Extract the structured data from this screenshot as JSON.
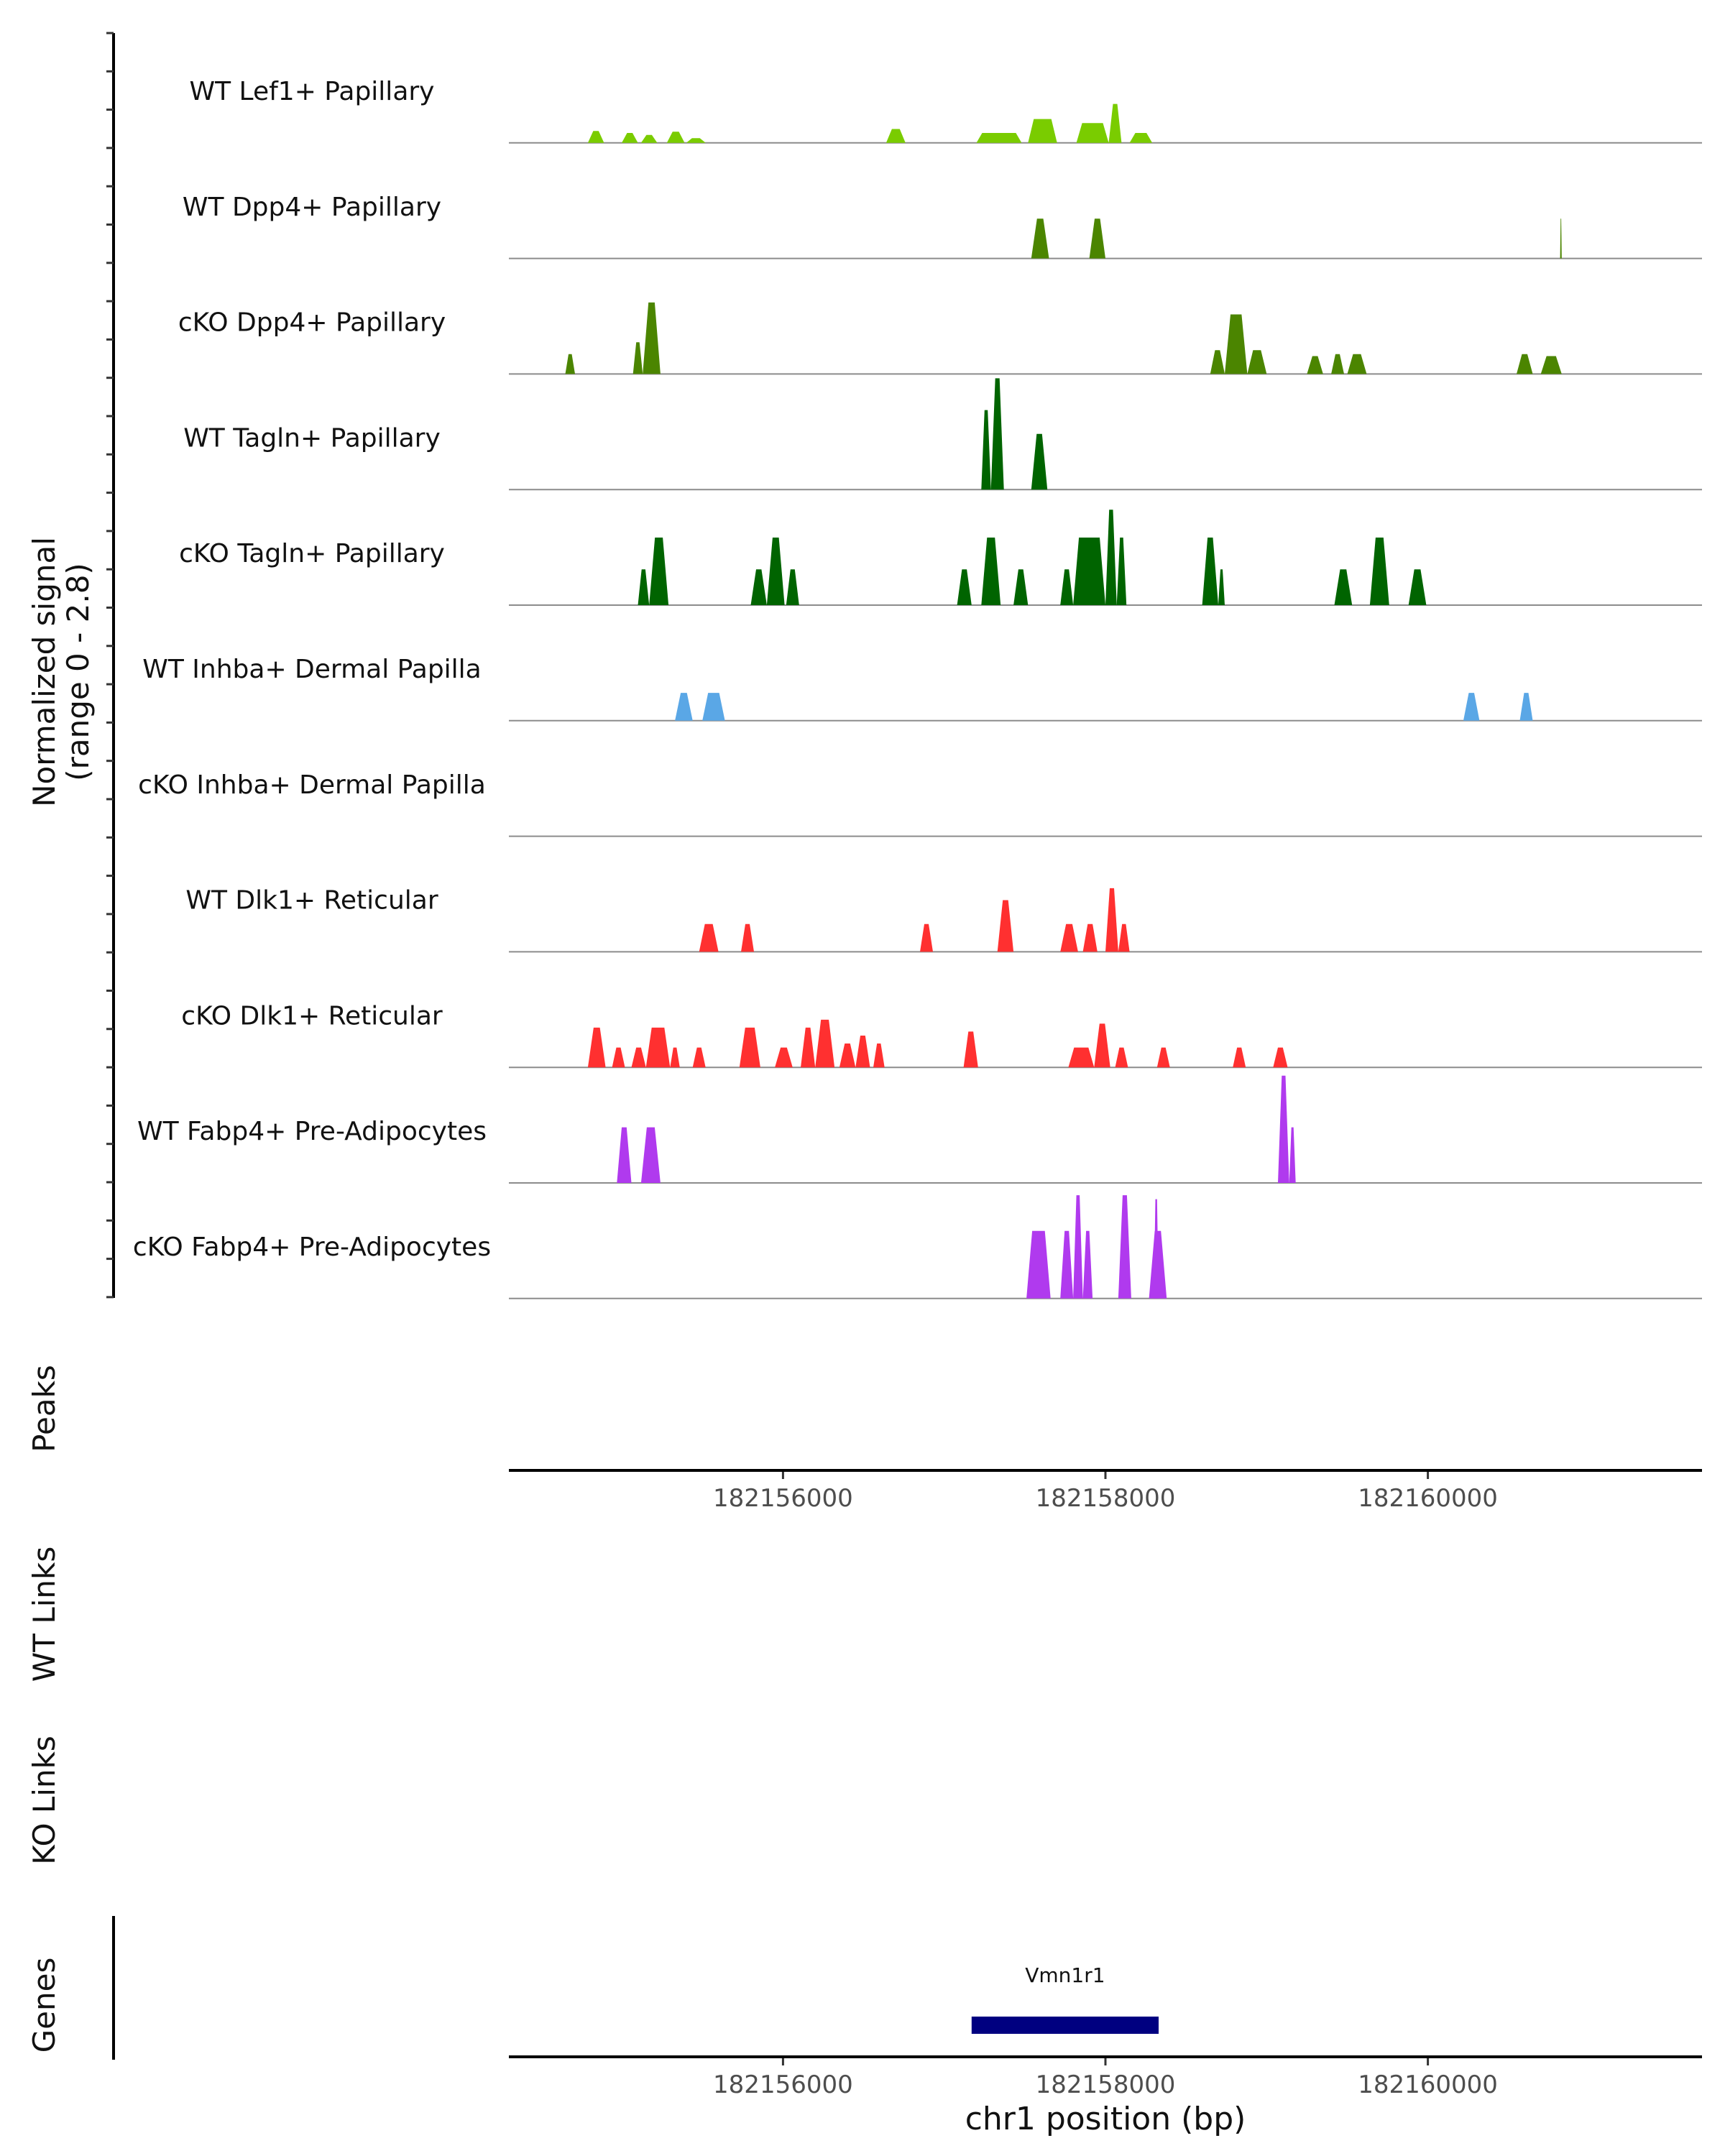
{
  "chart_data": {
    "type": "area",
    "title": "",
    "chromosome": "chr1",
    "xlim": [
      182154300,
      182161700
    ],
    "ylim": [
      0,
      2.8
    ],
    "ylabel_line1": "Normalized signal",
    "ylabel_line2": "(range 0 - 2.8)",
    "xlabel": "chr1 position (bp)",
    "x_ticks": [
      "182156000",
      "182158000",
      "182160000"
    ],
    "x_tick_values": [
      182156000,
      182158000,
      182160000
    ],
    "section_labels": {
      "peaks": "Peaks",
      "wt_links": "WT Links",
      "ko_links": "KO Links",
      "genes": "Genes"
    },
    "series": [
      {
        "name": "WT Lef1+ Papillary",
        "color": "#7ACC00",
        "peaks": [
          [
            182154790,
            182154890,
            0.3
          ],
          [
            182155000,
            182155100,
            0.25
          ],
          [
            182155120,
            182155220,
            0.2
          ],
          [
            182155280,
            182155390,
            0.28
          ],
          [
            182155400,
            182155520,
            0.12
          ],
          [
            182156640,
            182156760,
            0.35
          ],
          [
            182157200,
            182157480,
            0.25
          ],
          [
            182157520,
            182157700,
            0.6
          ],
          [
            182157820,
            182158020,
            0.5
          ],
          [
            182158020,
            182158100,
            0.98
          ],
          [
            182158150,
            182158290,
            0.25
          ]
        ]
      },
      {
        "name": "WT Dpp4+ Papillary",
        "color": "#4B8500",
        "peaks": [
          [
            182157540,
            182157650,
            1.0
          ],
          [
            182157900,
            182158000,
            1.0
          ],
          [
            182160820,
            182160830,
            1.0
          ]
        ]
      },
      {
        "name": "cKO Dpp4+ Papillary",
        "color": "#4B8500",
        "peaks": [
          [
            182154650,
            182154710,
            0.5
          ],
          [
            182155070,
            182155130,
            0.8
          ],
          [
            182155130,
            182155240,
            1.8
          ],
          [
            182158650,
            182158740,
            0.6
          ],
          [
            182158740,
            182158880,
            1.5
          ],
          [
            182158880,
            182159000,
            0.6
          ],
          [
            182159250,
            182159350,
            0.45
          ],
          [
            182159400,
            182159480,
            0.5
          ],
          [
            182159500,
            182159620,
            0.5
          ],
          [
            182160550,
            182160650,
            0.5
          ],
          [
            182160700,
            182160830,
            0.45
          ]
        ]
      },
      {
        "name": "WT Tagln+ Papillary",
        "color": "#006400",
        "peaks": [
          [
            182157230,
            182157290,
            2.0
          ],
          [
            182157290,
            182157370,
            2.8
          ],
          [
            182157540,
            182157640,
            1.4
          ]
        ]
      },
      {
        "name": "cKO Tagln+ Papillary",
        "color": "#006400",
        "peaks": [
          [
            182155100,
            182155170,
            0.9
          ],
          [
            182155170,
            182155290,
            1.7
          ],
          [
            182155800,
            182155900,
            0.9
          ],
          [
            182155900,
            182156010,
            1.7
          ],
          [
            182156020,
            182156100,
            0.9
          ],
          [
            182157080,
            182157170,
            0.9
          ],
          [
            182157230,
            182157350,
            1.7
          ],
          [
            182157430,
            182157520,
            0.9
          ],
          [
            182157720,
            182157800,
            0.9
          ],
          [
            182157800,
            182158000,
            1.7
          ],
          [
            182158000,
            182158070,
            2.4
          ],
          [
            182158070,
            182158130,
            1.7
          ],
          [
            182158600,
            182158700,
            1.7
          ],
          [
            182158700,
            182158740,
            0.9
          ],
          [
            182159420,
            182159530,
            0.9
          ],
          [
            182159640,
            182159760,
            1.7
          ],
          [
            182159880,
            182159990,
            0.9
          ]
        ]
      },
      {
        "name": "WT Inhba+ Dermal Papilla",
        "color": "#5AA7E6",
        "peaks": [
          [
            182155330,
            182155440,
            0.7
          ],
          [
            182155500,
            182155640,
            0.7
          ],
          [
            182160220,
            182160320,
            0.7
          ],
          [
            182160570,
            182160650,
            0.7
          ]
        ]
      },
      {
        "name": "cKO Inhba+ Dermal Papilla",
        "color": "#5AA7E6",
        "peaks": []
      },
      {
        "name": "WT Dlk1+ Reticular",
        "color": "#FF3030",
        "peaks": [
          [
            182155480,
            182155600,
            0.7
          ],
          [
            182155740,
            182155820,
            0.7
          ],
          [
            182156850,
            182156930,
            0.7
          ],
          [
            182157330,
            182157430,
            1.3
          ],
          [
            182157720,
            182157830,
            0.7
          ],
          [
            182157860,
            182157950,
            0.7
          ],
          [
            182158000,
            182158080,
            1.6
          ],
          [
            182158080,
            182158150,
            0.7
          ]
        ]
      },
      {
        "name": "cKO Dlk1+ Reticular",
        "color": "#FF3030",
        "peaks": [
          [
            182154790,
            182154900,
            1.0
          ],
          [
            182154940,
            182155020,
            0.5
          ],
          [
            182155060,
            182155150,
            0.5
          ],
          [
            182155150,
            182155300,
            1.0
          ],
          [
            182155300,
            182155360,
            0.5
          ],
          [
            182155440,
            182155520,
            0.5
          ],
          [
            182155730,
            182155860,
            1.0
          ],
          [
            182155950,
            182156060,
            0.5
          ],
          [
            182156110,
            182156200,
            1.0
          ],
          [
            182156200,
            182156320,
            1.2
          ],
          [
            182156350,
            182156450,
            0.6
          ],
          [
            182156450,
            182156540,
            0.8
          ],
          [
            182156560,
            182156630,
            0.6
          ],
          [
            182157120,
            182157210,
            0.9
          ],
          [
            182157770,
            182157930,
            0.5
          ],
          [
            182157930,
            182158030,
            1.1
          ],
          [
            182158060,
            182158140,
            0.5
          ],
          [
            182158320,
            182158400,
            0.5
          ],
          [
            182158790,
            182158870,
            0.5
          ],
          [
            182159040,
            182159130,
            0.5
          ]
        ]
      },
      {
        "name": "WT Fabp4+ Pre-Adipocytes",
        "color": "#B03AEE",
        "peaks": [
          [
            182154970,
            182155060,
            1.4
          ],
          [
            182155120,
            182155240,
            1.4
          ],
          [
            182159070,
            182159140,
            2.7
          ],
          [
            182159140,
            182159180,
            1.4
          ]
        ]
      },
      {
        "name": "cKO Fabp4+ Pre-Adipocytes",
        "color": "#B03AEE",
        "peaks": [
          [
            182157510,
            182157660,
            1.7
          ],
          [
            182157720,
            182157800,
            1.7
          ],
          [
            182157800,
            182157860,
            2.6
          ],
          [
            182157860,
            182157920,
            1.7
          ],
          [
            182158080,
            182158160,
            2.6
          ],
          [
            182158270,
            182158380,
            1.7
          ],
          [
            182158300,
            182158330,
            2.5
          ]
        ]
      }
    ],
    "genes": [
      {
        "name": "Vmn1r1",
        "start": 182157170,
        "end": 182158330,
        "color": "#000080"
      }
    ]
  }
}
